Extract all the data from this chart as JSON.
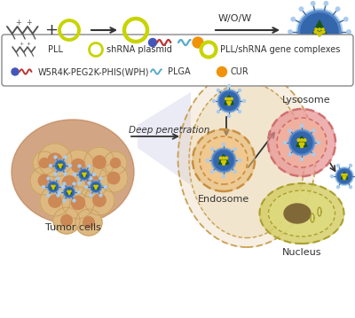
{
  "bg_color": "#ffffff",
  "colors": {
    "yellow_green": "#c8d400",
    "orange": "#f0920a",
    "blue_dark": "#4455bb",
    "blue_light": "#55aacc",
    "green_dark": "#1a5515",
    "tan_cell": "#d4a060",
    "tan_light": "#e8c898",
    "tan_bg": "#c89060",
    "pink_lyso": "#e88888",
    "pink_lyso_light": "#f0b0a0",
    "salmon_inner": "#e8a070",
    "yellow_nucleus": "#d8d060",
    "yellow_nucleus_light": "#e8e090",
    "brown_nuc": "#806838",
    "endosome_outer": "#e8b870",
    "endosome_inner": "#f0c890",
    "endosome_fill": "#f8d8b0",
    "cell_wall": "#d4a060",
    "beam_color": "#c0c0e0",
    "red_wave": "#bb2222",
    "green_wave": "#447733"
  },
  "labels": {
    "wow": "W/O/W",
    "pll": "PLL",
    "shrna": "shRNA plasmid",
    "complex": "PLL/shRNA gene complexes",
    "wph": "W5R4K-PEG2K-PHIS(WPH)",
    "plga": "PLGA",
    "cur": "CUR",
    "tumor_cells": "Tumor cells",
    "deep_pen": "Deep penetration",
    "endosome": "Endosome",
    "lysosome": "Lysosome",
    "nucleus": "Nucleus"
  }
}
